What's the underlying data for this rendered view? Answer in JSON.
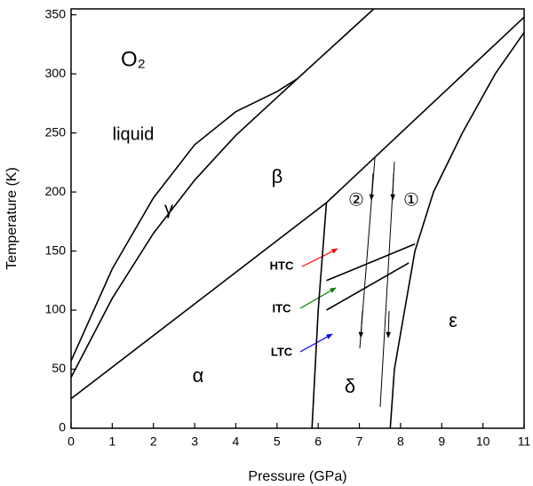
{
  "chart_data": {
    "type": "line",
    "xlabel": "Pressure (GPa)",
    "ylabel": "Temperature (K)",
    "xlim": [
      0,
      11
    ],
    "xticks": [
      0,
      1,
      2,
      3,
      4,
      5,
      6,
      7,
      8,
      9,
      10,
      11
    ],
    "ylim": [
      0,
      355
    ],
    "yticks": [
      0,
      50,
      100,
      150,
      200,
      250,
      300,
      350
    ],
    "series": [
      {
        "color": "#000000",
        "x": [
          0,
          6.2,
          11
        ],
        "values": [
          25,
          191,
          348
        ]
      },
      {
        "color": "#000000",
        "x": [
          0,
          1,
          2,
          3,
          4,
          5,
          5.5
        ],
        "values": [
          57,
          135,
          195,
          240,
          268,
          285,
          296
        ]
      },
      {
        "color": "#000000",
        "x": [
          0,
          1,
          2,
          3,
          4,
          5,
          5.5
        ],
        "values": [
          43,
          110,
          165,
          210,
          248,
          280,
          296
        ]
      },
      {
        "color": "#000000",
        "x": [
          5.5,
          7.35
        ],
        "values": [
          296,
          355
        ]
      },
      {
        "color": "#000000",
        "x": [
          5.85,
          6.0,
          6.2
        ],
        "values": [
          0,
          100,
          191
        ]
      },
      {
        "color": "#000000",
        "x": [
          7.75,
          7.85,
          8.1,
          8.35,
          8.8,
          9.5,
          10.3,
          11
        ],
        "values": [
          0,
          50,
          100,
          150,
          200,
          250,
          300,
          335
        ]
      },
      {
        "color": "#000000",
        "x": [
          6.2,
          8.35
        ],
        "values": [
          125,
          156
        ]
      },
      {
        "color": "#000000",
        "x": [
          6.2,
          8.2
        ],
        "values": [
          100,
          140
        ]
      }
    ],
    "annotations": [
      {
        "text": "O₂",
        "color": "#000000"
      },
      {
        "text": "liquid",
        "color": "#000000"
      },
      {
        "text": "γ",
        "color": "#000000"
      },
      {
        "text": "β",
        "color": "#000000"
      },
      {
        "text": "α",
        "color": "#000000"
      },
      {
        "text": "δ",
        "color": "#000000"
      },
      {
        "text": "ε",
        "color": "#000000"
      },
      {
        "text": "②",
        "color": "#000000"
      },
      {
        "text": "①",
        "color": "#000000"
      },
      {
        "text": "HTC",
        "color": "#ff0000"
      },
      {
        "text": "ITC",
        "color": "#008000"
      },
      {
        "text": "LTC",
        "color": "#0000ff"
      }
    ]
  }
}
